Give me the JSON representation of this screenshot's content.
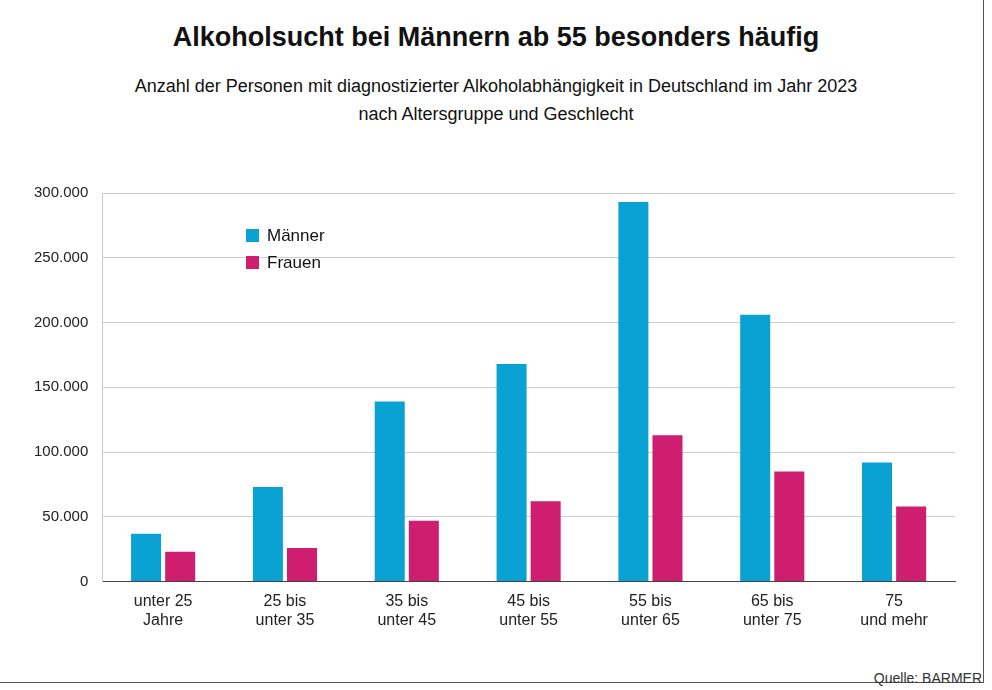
{
  "chart_data": {
    "type": "bar",
    "title": "Alkoholsucht bei Männern ab 55 besonders häufig",
    "subtitle": [
      "Anzahl der Personen mit diagnostizierter Alkoholabhängigkeit in Deutschland im Jahr 2023",
      "nach Altersgruppe und Geschlecht"
    ],
    "source": "Quelle: BARMER",
    "categories": [
      [
        "unter 25",
        "Jahre"
      ],
      [
        "25 bis",
        "unter 35"
      ],
      [
        "35 bis",
        "unter 45"
      ],
      [
        "45 bis",
        "unter 55"
      ],
      [
        "55 bis",
        "unter 65"
      ],
      [
        "65 bis",
        "unter 75"
      ],
      [
        "75",
        "und mehr"
      ]
    ],
    "series": [
      {
        "name": "Männer",
        "color": "#0aa2d3",
        "values": [
          37000,
          73000,
          139000,
          168000,
          293000,
          206000,
          92000
        ]
      },
      {
        "name": "Frauen",
        "color": "#cf1e70",
        "values": [
          23000,
          26000,
          47000,
          62000,
          113000,
          85000,
          58000
        ]
      }
    ],
    "ylim": [
      0,
      300000
    ],
    "yticks": [
      0,
      {
        "value": 50000,
        "label": "50.000"
      },
      {
        "value": 100000,
        "label": "100.000"
      },
      {
        "value": 150000,
        "label": "150.000"
      },
      {
        "value": 200000,
        "label": "200.000"
      },
      {
        "value": 250000,
        "label": "250.000"
      },
      {
        "value": 300000,
        "label": "300.000"
      }
    ],
    "grid": true,
    "legend": "upper left"
  }
}
